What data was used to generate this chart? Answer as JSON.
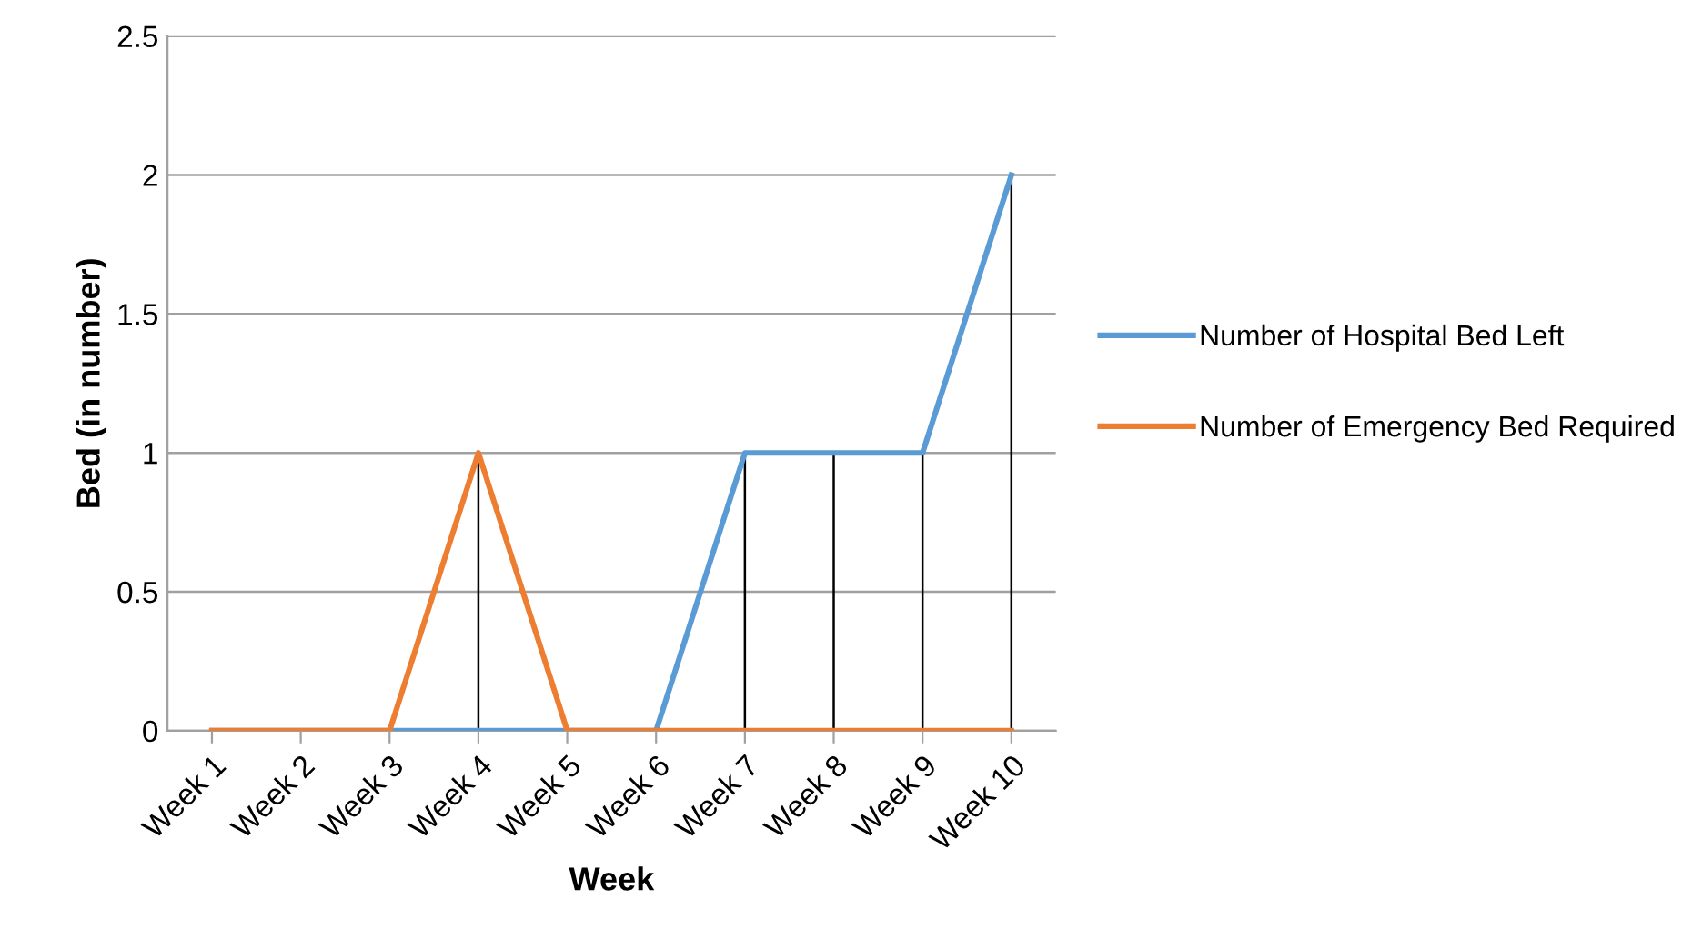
{
  "chart_data": {
    "type": "line",
    "xlabel": "Week",
    "ylabel": "Bed (in number)",
    "categories": [
      "Week 1",
      "Week 2",
      "Week 3",
      "Week 4",
      "Week 5",
      "Week 6",
      "Week 7",
      "Week 8",
      "Week 9",
      "Week 10"
    ],
    "series": [
      {
        "name": "Number of Hospital Bed Left",
        "color": "#5b9bd5",
        "values": [
          0,
          0,
          0,
          0,
          0,
          0,
          1,
          1,
          1,
          2
        ],
        "errors": [
          null,
          null,
          null,
          null,
          null,
          null,
          [
            1,
            0
          ],
          [
            1,
            0
          ],
          [
            1,
            0
          ],
          [
            2,
            0
          ]
        ]
      },
      {
        "name": "Number of Emergency Bed Required",
        "color": "#ed7d31",
        "values": [
          0,
          0,
          0,
          1,
          0,
          0,
          0,
          0,
          0,
          0
        ],
        "errors": [
          null,
          null,
          null,
          [
            1,
            0
          ],
          null,
          null,
          null,
          null,
          null,
          null
        ]
      }
    ],
    "ylim": [
      0,
      2.5
    ],
    "yticks": [
      0,
      0.5,
      1,
      1.5,
      2,
      2.5
    ],
    "grid": "y",
    "legend": "right",
    "marker": "none",
    "line_style": "solid"
  }
}
